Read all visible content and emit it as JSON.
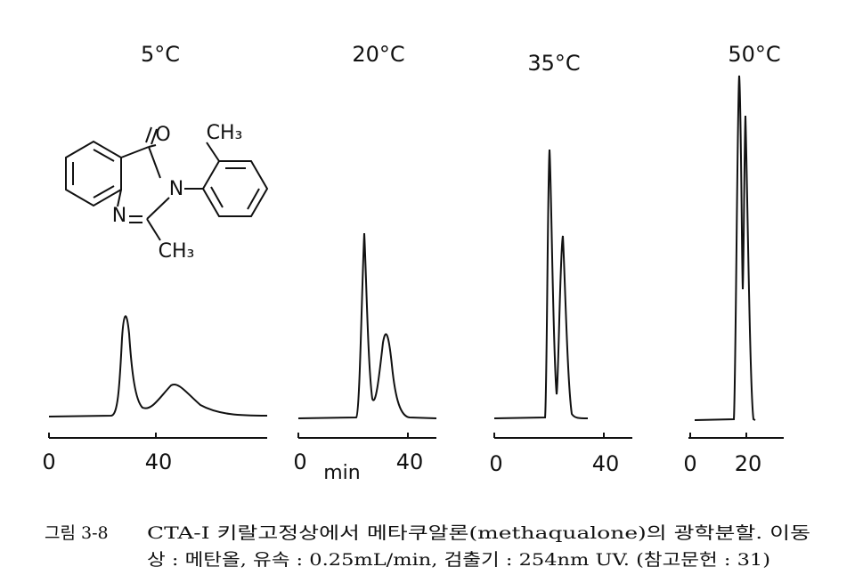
{
  "figure": {
    "panels": [
      {
        "title": "5°C",
        "ticks": [
          "0",
          "40"
        ]
      },
      {
        "title": "20°C",
        "ticks": [
          "0",
          "40"
        ],
        "axis_label": "min"
      },
      {
        "title": "35°C",
        "ticks": [
          "0",
          "40"
        ]
      },
      {
        "title": "50°C",
        "ticks": [
          "0",
          "20"
        ]
      }
    ],
    "structure": {
      "oxygen": "O",
      "methyl_top": "CH₃",
      "nitrogen_3": "N",
      "nitrogen_1": "N",
      "methyl_bottom": "CH₃"
    },
    "caption": {
      "label": "그림 3-8",
      "line1": "CTA-I 키랄고정상에서 메타쿠알론(methaqualone)의 광학분할. 이동",
      "line2": "상 : 메탄올,  유속 : 0.25mL/min, 검출기 : 254nm UV. (참고문헌 : 31)"
    }
  }
}
